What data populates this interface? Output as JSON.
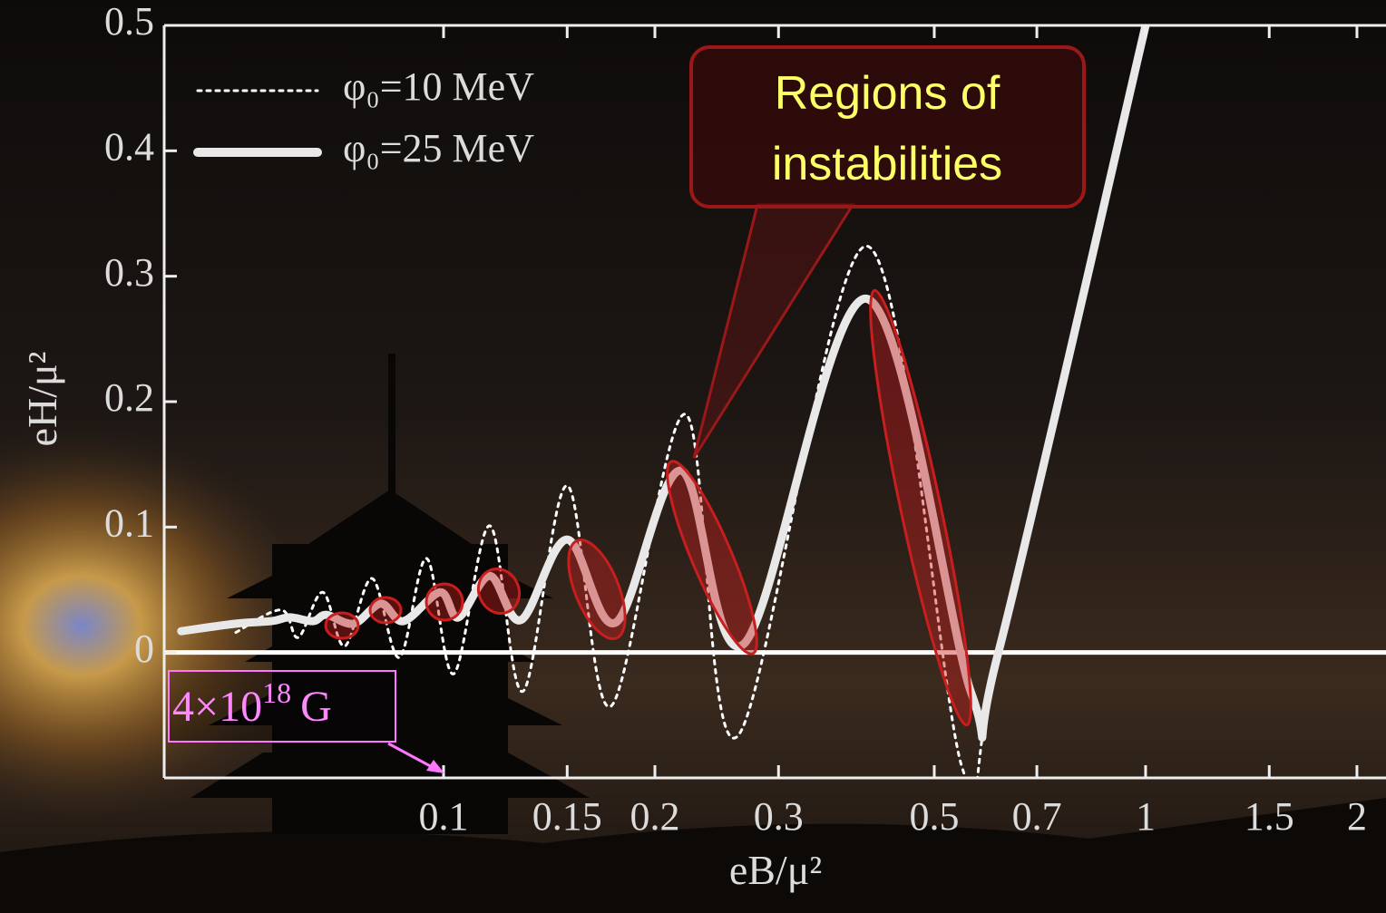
{
  "chart_data": {
    "type": "line",
    "xlabel": "eB/μ²",
    "ylabel": "eH/μ²",
    "xscale": "log",
    "xlim": [
      0.04,
      2.2
    ],
    "ylim": [
      -0.1,
      0.5
    ],
    "xticks": [
      0.1,
      0.15,
      0.2,
      0.3,
      0.5,
      0.7,
      1,
      1.5,
      2
    ],
    "yticks": [
      0,
      0.1,
      0.2,
      0.3,
      0.4,
      0.5
    ],
    "legend": "top-left",
    "series": [
      {
        "name": "φ₀=10 MeV",
        "color": "#ffffff",
        "style": "dotted",
        "x": [
          0.0506,
          0.0587,
          0.0621,
          0.0673,
          0.0723,
          0.0791,
          0.0865,
          0.0946,
          0.1034,
          0.1164,
          0.1297,
          0.15,
          0.173,
          0.221,
          0.262,
          0.401,
          0.548,
          0.617,
          1.0
        ],
        "values": [
          0.016,
          0.034,
          0.012,
          0.048,
          0.005,
          0.059,
          -0.004,
          0.075,
          -0.017,
          0.101,
          -0.031,
          0.133,
          -0.043,
          0.19,
          -0.067,
          0.324,
          -0.092,
          0.0,
          0.5
        ]
      },
      {
        "name": "φ₀=25 MeV",
        "color": "#e8e8e8",
        "style": "solid",
        "x": [
          0.0423,
          0.0506,
          0.0569,
          0.0604,
          0.0652,
          0.0681,
          0.0745,
          0.0814,
          0.0877,
          0.0989,
          0.105,
          0.1164,
          0.129,
          0.15,
          0.176,
          0.218,
          0.268,
          0.401,
          0.565,
          0.617,
          1.0
        ],
        "values": [
          0.017,
          0.023,
          0.025,
          0.028,
          0.025,
          0.03,
          0.023,
          0.039,
          0.025,
          0.048,
          0.028,
          0.061,
          0.026,
          0.09,
          0.024,
          0.145,
          0.007,
          0.282,
          -0.033,
          0.0,
          0.5
        ]
      }
    ],
    "annotations": {
      "callout": [
        "Regions of",
        "instabilities"
      ],
      "field": {
        "base": "4×10",
        "exponent": "18",
        "unit": "G"
      }
    }
  }
}
